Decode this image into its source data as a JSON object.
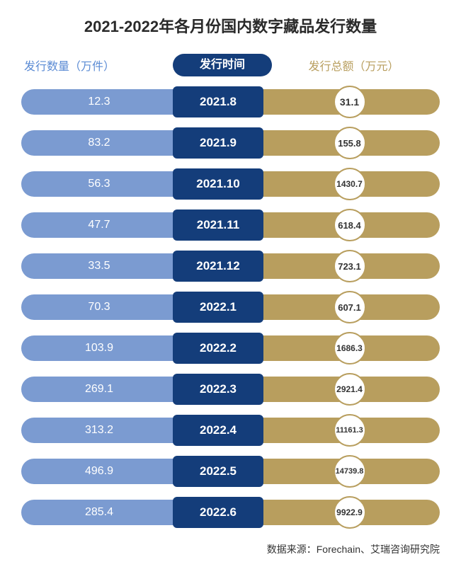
{
  "title": "2021-2022年各月份国内数字藏品发行数量",
  "headers": {
    "left": "发行数量（万件）",
    "center": "发行时间",
    "right": "发行总额（万元）"
  },
  "colors": {
    "left_pill": "#7b9bd1",
    "center_pill": "#143d7a",
    "right_pill": "#b89e5e",
    "header_left_text": "#5b8bd4",
    "header_center_bg": "#143d7a",
    "header_right_text": "#b89e5e",
    "circle_border": "#b89e5e",
    "circle_text": "#333333",
    "title_color": "#2a2a2a"
  },
  "typography": {
    "title_size": 22,
    "header_size": 16,
    "row_left_size": 16,
    "row_center_size": 17,
    "circle_size": 14,
    "source_size": 14
  },
  "rows": [
    {
      "quantity": "12.3",
      "date": "2021.8",
      "amount": "31.1"
    },
    {
      "quantity": "83.2",
      "date": "2021.9",
      "amount": "155.8"
    },
    {
      "quantity": "56.3",
      "date": "2021.10",
      "amount": "1430.7"
    },
    {
      "quantity": "47.7",
      "date": "2021.11",
      "amount": "618.4"
    },
    {
      "quantity": "33.5",
      "date": "2021.12",
      "amount": "723.1"
    },
    {
      "quantity": "70.3",
      "date": "2022.1",
      "amount": "607.1"
    },
    {
      "quantity": "103.9",
      "date": "2022.2",
      "amount": "1686.3"
    },
    {
      "quantity": "269.1",
      "date": "2022.3",
      "amount": "2921.4"
    },
    {
      "quantity": "313.2",
      "date": "2022.4",
      "amount": "11161.3"
    },
    {
      "quantity": "496.9",
      "date": "2022.5",
      "amount": "14739.8"
    },
    {
      "quantity": "285.4",
      "date": "2022.6",
      "amount": "9922.9"
    }
  ],
  "source": "数据来源：Forechain、艾瑞咨询研究院"
}
